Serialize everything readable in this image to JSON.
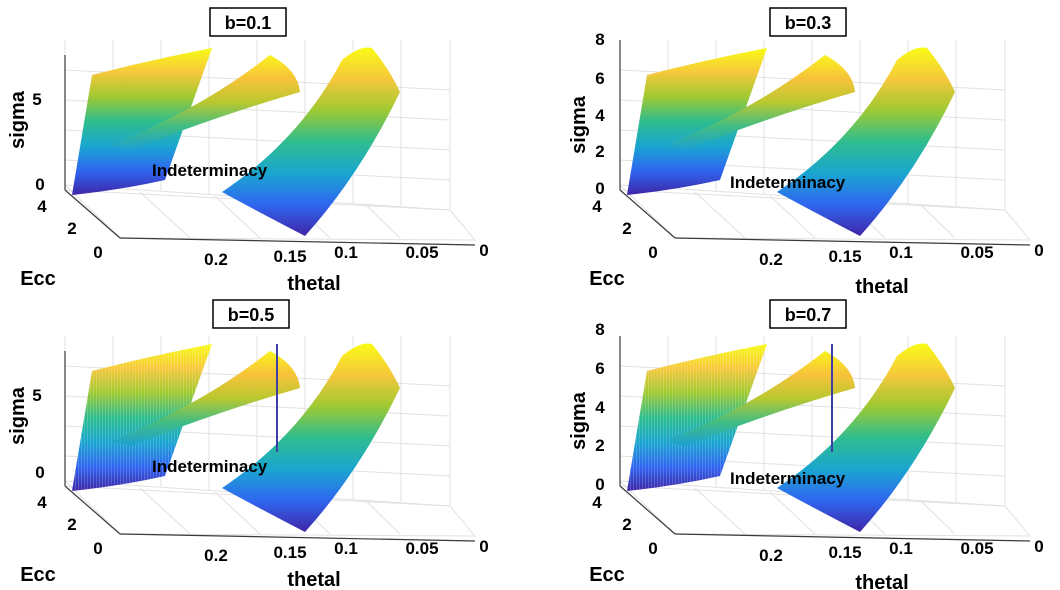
{
  "chart_data": [
    {
      "type": "surface",
      "title": "b=0.1",
      "xlabel": "thetal",
      "ylabel": "Ecc",
      "zlabel": "sigma",
      "xticks": [
        "0.2",
        "0.15",
        "0.1",
        "0.05",
        "0"
      ],
      "yticks": [
        "4",
        "2",
        "0"
      ],
      "zticks": [
        "5",
        "0"
      ],
      "annotation": "Indeterminacy",
      "colormap": [
        "#3e26a8",
        "#2f66f0",
        "#1aa6d0",
        "#2ebd8e",
        "#9fc932",
        "#f6c83b",
        "#f9fb15"
      ]
    },
    {
      "type": "surface",
      "title": "b=0.3",
      "xlabel": "thetal",
      "ylabel": "Ecc",
      "zlabel": "sigma",
      "xticks": [
        "0.2",
        "0.15",
        "0.1",
        "0.05",
        "0"
      ],
      "yticks": [
        "4",
        "2",
        "0"
      ],
      "zticks": [
        "8",
        "6",
        "4",
        "2",
        "0"
      ],
      "annotation": "Indeterminacy",
      "colormap": [
        "#3e26a8",
        "#2f66f0",
        "#1aa6d0",
        "#2ebd8e",
        "#9fc932",
        "#f6c83b",
        "#f9fb15"
      ]
    },
    {
      "type": "surface",
      "title": "b=0.5",
      "xlabel": "thetal",
      "ylabel": "Ecc",
      "zlabel": "sigma",
      "xticks": [
        "0.2",
        "0.15",
        "0.1",
        "0.05",
        "0"
      ],
      "yticks": [
        "4",
        "2",
        "0"
      ],
      "zticks": [
        "5",
        "0"
      ],
      "annotation": "Indeterminacy",
      "colormap": [
        "#3e26a8",
        "#2f66f0",
        "#1aa6d0",
        "#2ebd8e",
        "#9fc932",
        "#f6c83b",
        "#f9fb15"
      ]
    },
    {
      "type": "surface",
      "title": "b=0.7",
      "xlabel": "thetal",
      "ylabel": "Ecc",
      "zlabel": "sigma",
      "xticks": [
        "0.2",
        "0.15",
        "0.1",
        "0.05",
        "0"
      ],
      "yticks": [
        "4",
        "2",
        "0"
      ],
      "zticks": [
        "8",
        "6",
        "4",
        "2",
        "0"
      ],
      "annotation": "Indeterminacy",
      "colormap": [
        "#3e26a8",
        "#2f66f0",
        "#1aa6d0",
        "#2ebd8e",
        "#9fc932",
        "#f6c83b",
        "#f9fb15"
      ]
    }
  ]
}
